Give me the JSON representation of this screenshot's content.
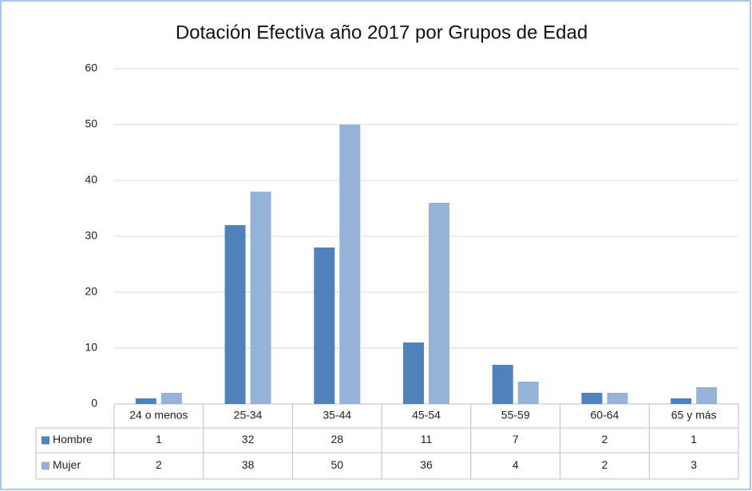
{
  "chart_data": {
    "type": "bar",
    "title": "Dotación Efectiva año 2017 por Grupos de Edad",
    "categories": [
      "24 o menos",
      "25-34",
      "35-44",
      "45-54",
      "55-59",
      "60-64",
      "65 y más"
    ],
    "series": [
      {
        "name": "Hombre",
        "color": "#4f81bd",
        "values": [
          1,
          32,
          28,
          11,
          7,
          2,
          1
        ]
      },
      {
        "name": "Mujer",
        "color": "#95b3d7",
        "values": [
          2,
          38,
          50,
          36,
          4,
          2,
          3
        ]
      }
    ],
    "ylim": [
      0,
      60
    ],
    "yticks": [
      0,
      10,
      20,
      30,
      40,
      50,
      60
    ],
    "grid": true,
    "data_table": true
  }
}
